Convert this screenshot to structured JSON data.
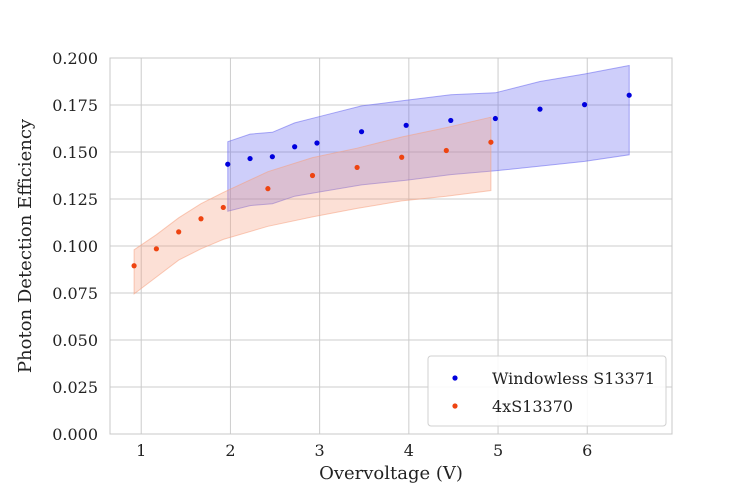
{
  "chart_data": {
    "type": "scatter",
    "title": "",
    "xlabel": "Overvoltage (V)",
    "ylabel": "Photon Detection Efficiency",
    "xlim": [
      0.65,
      6.95
    ],
    "ylim": [
      0.0,
      0.2
    ],
    "grid": true,
    "legend_position": "bottom-right",
    "x_ticks": [
      {
        "value": 1,
        "label": "1"
      },
      {
        "value": 2,
        "label": "2"
      },
      {
        "value": 3,
        "label": "3"
      },
      {
        "value": 4,
        "label": "4"
      },
      {
        "value": 5,
        "label": "5"
      },
      {
        "value": 6,
        "label": "6"
      }
    ],
    "y_ticks": [
      {
        "value": 0.0,
        "label": "0.000"
      },
      {
        "value": 0.025,
        "label": "0.025"
      },
      {
        "value": 0.05,
        "label": "0.050"
      },
      {
        "value": 0.075,
        "label": "0.075"
      },
      {
        "value": 0.1,
        "label": "0.100"
      },
      {
        "value": 0.125,
        "label": "0.125"
      },
      {
        "value": 0.15,
        "label": "0.150"
      },
      {
        "value": 0.175,
        "label": "0.175"
      },
      {
        "value": 0.2,
        "label": "0.200"
      }
    ],
    "series": [
      {
        "name": "Windowless S13371",
        "color": "#0000dd",
        "band_color": "#6666ee",
        "x": [
          1.97,
          2.22,
          2.47,
          2.72,
          2.97,
          3.47,
          3.97,
          4.47,
          4.97,
          5.47,
          5.97,
          6.47
        ],
        "y": [
          0.1435,
          0.1465,
          0.1475,
          0.1528,
          0.1548,
          0.1608,
          0.1642,
          0.1668,
          0.1678,
          0.1728,
          0.1752,
          0.1802
        ],
        "band_upper": [
          0.1555,
          0.1595,
          0.1605,
          0.1655,
          0.1685,
          0.1745,
          0.1775,
          0.1805,
          0.1815,
          0.1875,
          0.1915,
          0.196
        ],
        "band_lower": [
          0.1185,
          0.1215,
          0.1225,
          0.1265,
          0.1285,
          0.1325,
          0.135,
          0.138,
          0.14,
          0.1425,
          0.145,
          0.1485
        ]
      },
      {
        "name": "4xS13370",
        "color": "#ee4411",
        "band_color": "#f5a080",
        "x": [
          0.92,
          1.17,
          1.42,
          1.67,
          1.92,
          2.42,
          2.92,
          3.42,
          3.92,
          4.42,
          4.92
        ],
        "y": [
          0.0895,
          0.0985,
          0.1075,
          0.1145,
          0.1205,
          0.1305,
          0.1375,
          0.1418,
          0.1472,
          0.1508,
          0.1552
        ],
        "band_upper": [
          0.098,
          0.106,
          0.115,
          0.1225,
          0.1285,
          0.1395,
          0.147,
          0.152,
          0.158,
          0.163,
          0.1685
        ],
        "band_lower": [
          0.0745,
          0.0835,
          0.0925,
          0.0985,
          0.1035,
          0.1105,
          0.1155,
          0.12,
          0.124,
          0.1265,
          0.1295
        ]
      }
    ]
  }
}
